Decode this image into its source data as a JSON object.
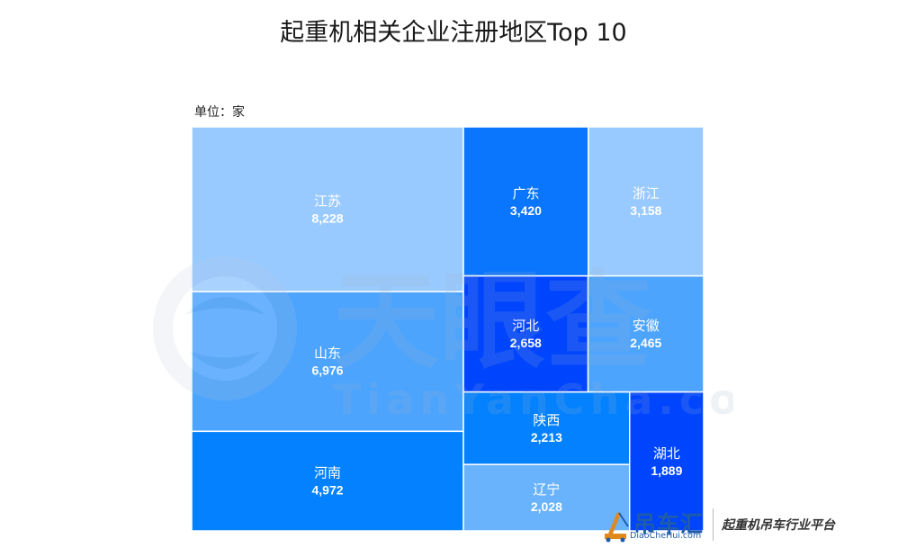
{
  "chart_data": {
    "type": "treemap",
    "title": "起重机相关企业注册地区Top 10",
    "unit_label": "单位：家",
    "items": [
      {
        "name": "江苏",
        "value": 8228,
        "value_label": "8,228",
        "color": "#99caff"
      },
      {
        "name": "山东",
        "value": 6976,
        "value_label": "6,976",
        "color": "#4da4fd"
      },
      {
        "name": "河南",
        "value": 4972,
        "value_label": "4,972",
        "color": "#0481ff"
      },
      {
        "name": "广东",
        "value": 3420,
        "value_label": "3,420",
        "color": "#0a75fd"
      },
      {
        "name": "浙江",
        "value": 3158,
        "value_label": "3,158",
        "color": "#99caff"
      },
      {
        "name": "河北",
        "value": 2658,
        "value_label": "2,658",
        "color": "#0045fe"
      },
      {
        "name": "安徽",
        "value": 2465,
        "value_label": "2,465",
        "color": "#4da4fd"
      },
      {
        "name": "陕西",
        "value": 2213,
        "value_label": "2,213",
        "color": "#0481ff"
      },
      {
        "name": "辽宁",
        "value": 2028,
        "value_label": "2,028",
        "color": "#69b3fd"
      },
      {
        "name": "湖北",
        "value": 1889,
        "value_label": "1,889",
        "color": "#0045fe"
      }
    ]
  },
  "watermark": {
    "logo_text": "天眼查",
    "url_text": "TianYanCha.com"
  },
  "brand": {
    "logo_text": "吊车汇",
    "url": "DiaoCheHui.com",
    "slogan": "起重机吊车行业平台"
  }
}
